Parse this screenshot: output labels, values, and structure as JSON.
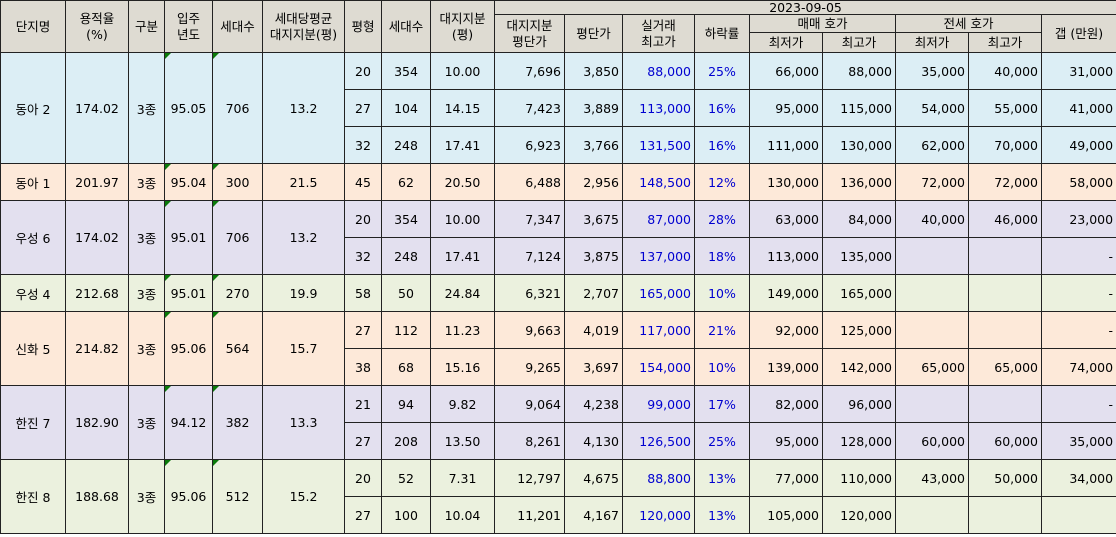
{
  "date": "2023-09-05",
  "headers": {
    "complex": "단지명",
    "far": [
      "용적율",
      "(%)"
    ],
    "zone": "구분",
    "movein": [
      "입주",
      "년도"
    ],
    "households": "세대수",
    "avg_land": [
      "세대당평균",
      "대지지분(평)"
    ],
    "pyeong": "평형",
    "unit_households": "세대수",
    "land_share": [
      "대지지분",
      "(평)"
    ],
    "land_ppp": [
      "대지지분",
      "평단가"
    ],
    "ppp": "평단가",
    "peak": [
      "실거래",
      "최고가"
    ],
    "drop": "하락률",
    "sale": "매매 호가",
    "jeonse": "전세 호가",
    "min": "최저가",
    "max": "최고가",
    "gap": "갭 (만원)"
  },
  "groups": [
    {
      "name": "동아 2",
      "far": "174.02",
      "zone": "3종",
      "year": "95.05",
      "hh": "706",
      "avg": "13.2",
      "color": "blue",
      "rows": [
        {
          "p": "20",
          "hh": "354",
          "land": "10.00",
          "lppp": "7,696",
          "ppp": "3,850",
          "peak": "88,000",
          "drop": "25%",
          "smin": "66,000",
          "smax": "88,000",
          "jmin": "35,000",
          "jmax": "40,000",
          "gap": "31,000"
        },
        {
          "p": "27",
          "hh": "104",
          "land": "14.15",
          "lppp": "7,423",
          "ppp": "3,889",
          "peak": "113,000",
          "drop": "16%",
          "smin": "95,000",
          "smax": "115,000",
          "jmin": "54,000",
          "jmax": "55,000",
          "gap": "41,000"
        },
        {
          "p": "32",
          "hh": "248",
          "land": "17.41",
          "lppp": "6,923",
          "ppp": "3,766",
          "peak": "131,500",
          "drop": "16%",
          "smin": "111,000",
          "smax": "130,000",
          "jmin": "62,000",
          "jmax": "70,000",
          "gap": "49,000"
        }
      ]
    },
    {
      "name": "동아 1",
      "far": "201.97",
      "zone": "3종",
      "year": "95.04",
      "hh": "300",
      "avg": "21.5",
      "color": "peach",
      "rows": [
        {
          "p": "45",
          "hh": "62",
          "land": "20.50",
          "lppp": "6,488",
          "ppp": "2,956",
          "peak": "148,500",
          "drop": "12%",
          "smin": "130,000",
          "smax": "136,000",
          "jmin": "72,000",
          "jmax": "72,000",
          "gap": "58,000"
        }
      ]
    },
    {
      "name": "우성 6",
      "far": "174.02",
      "zone": "3종",
      "year": "95.01",
      "hh": "706",
      "avg": "13.2",
      "color": "lav",
      "rows": [
        {
          "p": "20",
          "hh": "354",
          "land": "10.00",
          "lppp": "7,347",
          "ppp": "3,675",
          "peak": "87,000",
          "drop": "28%",
          "smin": "63,000",
          "smax": "84,000",
          "jmin": "40,000",
          "jmax": "46,000",
          "gap": "23,000"
        },
        {
          "p": "32",
          "hh": "248",
          "land": "17.41",
          "lppp": "7,124",
          "ppp": "3,875",
          "peak": "137,000",
          "drop": "18%",
          "smin": "113,000",
          "smax": "135,000",
          "jmin": "",
          "jmax": "",
          "gap": "-"
        }
      ]
    },
    {
      "name": "우성 4",
      "far": "212.68",
      "zone": "3종",
      "year": "95.01",
      "hh": "270",
      "avg": "19.9",
      "color": "green",
      "rows": [
        {
          "p": "58",
          "hh": "50",
          "land": "24.84",
          "lppp": "6,321",
          "ppp": "2,707",
          "peak": "165,000",
          "drop": "10%",
          "smin": "149,000",
          "smax": "165,000",
          "jmin": "",
          "jmax": "",
          "gap": "-"
        }
      ]
    },
    {
      "name": "신화 5",
      "far": "214.82",
      "zone": "3종",
      "year": "95.06",
      "hh": "564",
      "avg": "15.7",
      "color": "peach",
      "rows": [
        {
          "p": "27",
          "hh": "112",
          "land": "11.23",
          "lppp": "9,663",
          "ppp": "4,019",
          "peak": "117,000",
          "drop": "21%",
          "smin": "92,000",
          "smax": "125,000",
          "jmin": "",
          "jmax": "",
          "gap": "-"
        },
        {
          "p": "38",
          "hh": "68",
          "land": "15.16",
          "lppp": "9,265",
          "ppp": "3,697",
          "peak": "154,000",
          "drop": "10%",
          "smin": "139,000",
          "smax": "142,000",
          "jmin": "65,000",
          "jmax": "65,000",
          "gap": "74,000"
        }
      ]
    },
    {
      "name": "한진 7",
      "far": "182.90",
      "zone": "3종",
      "year": "94.12",
      "hh": "382",
      "avg": "13.3",
      "color": "lav",
      "rows": [
        {
          "p": "21",
          "hh": "94",
          "land": "9.82",
          "lppp": "9,064",
          "ppp": "4,238",
          "peak": "99,000",
          "drop": "17%",
          "smin": "82,000",
          "smax": "96,000",
          "jmin": "",
          "jmax": "",
          "gap": "-"
        },
        {
          "p": "27",
          "hh": "208",
          "land": "13.50",
          "lppp": "8,261",
          "ppp": "4,130",
          "peak": "126,500",
          "drop": "25%",
          "smin": "95,000",
          "smax": "128,000",
          "jmin": "60,000",
          "jmax": "60,000",
          "gap": "35,000"
        }
      ]
    },
    {
      "name": "한진 8",
      "far": "188.68",
      "zone": "3종",
      "year": "95.06",
      "hh": "512",
      "avg": "15.2",
      "color": "green",
      "rows": [
        {
          "p": "20",
          "hh": "52",
          "land": "7.31",
          "lppp": "12,797",
          "ppp": "4,675",
          "peak": "88,800",
          "drop": "13%",
          "smin": "77,000",
          "smax": "110,000",
          "jmin": "43,000",
          "jmax": "50,000",
          "gap": "34,000"
        },
        {
          "p": "27",
          "hh": "100",
          "land": "10.04",
          "lppp": "11,201",
          "ppp": "4,167",
          "peak": "120,000",
          "drop": "13%",
          "smin": "105,000",
          "smax": "120,000",
          "jmin": "",
          "jmax": "",
          "gap": ""
        }
      ]
    }
  ]
}
